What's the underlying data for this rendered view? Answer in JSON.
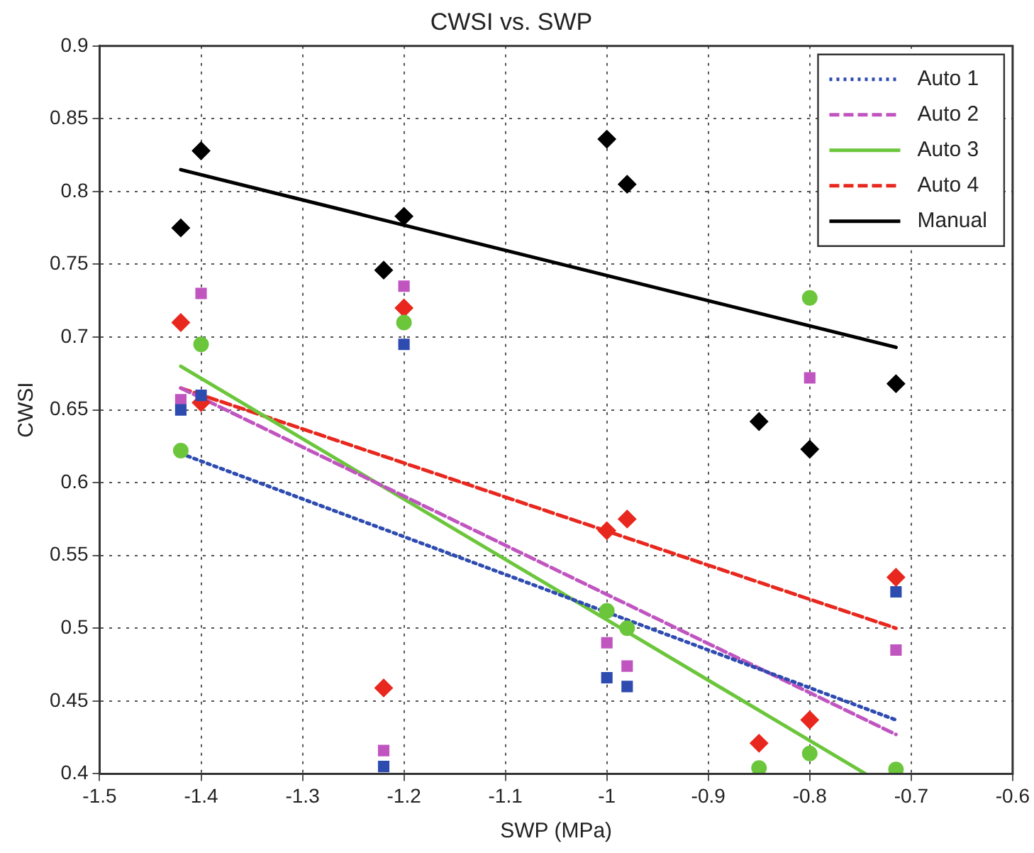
{
  "chart_data": {
    "type": "scatter",
    "title": "CWSI vs. SWP",
    "xlabel": "SWP (MPa)",
    "ylabel": "CWSI",
    "xlim": [
      -1.5,
      -0.6
    ],
    "xticks": [
      -1.5,
      -1.4,
      -1.3,
      -1.2,
      -1.1,
      -1,
      -0.9,
      -0.8,
      -0.7,
      -0.6
    ],
    "ylim": [
      0.4,
      0.9
    ],
    "yticks": [
      0.4,
      0.45,
      0.5,
      0.55,
      0.6,
      0.65,
      0.7,
      0.75,
      0.8,
      0.85,
      0.9
    ],
    "grid": true,
    "legend": "top right",
    "series": [
      {
        "type": "scatter",
        "marker": "square",
        "color": "#2e4bb0",
        "x": [
          -1.42,
          -1.4,
          -1.22,
          -1.2,
          -1,
          -0.98,
          -0.8,
          -0.715
        ],
        "values": [
          0.65,
          0.66,
          0.405,
          0.695,
          0.466,
          0.46,
          null,
          0.525
        ]
      },
      {
        "type": "scatter",
        "marker": "square",
        "color": "#c055c0",
        "x": [
          -1.42,
          -1.4,
          -1.22,
          -1.2,
          -1,
          -0.98,
          -0.8,
          -0.715
        ],
        "values": [
          0.657,
          0.73,
          0.416,
          0.735,
          0.49,
          0.474,
          0.672,
          0.485
        ]
      },
      {
        "type": "scatter",
        "marker": "circle",
        "color": "#6cc63c",
        "x": [
          -1.42,
          -1.4,
          -1.2,
          -1,
          -0.98,
          -0.85,
          -0.8,
          -0.8,
          -0.715
        ],
        "values": [
          0.622,
          0.695,
          0.71,
          0.512,
          0.5,
          0.404,
          0.414,
          0.727,
          0.403
        ]
      },
      {
        "type": "scatter",
        "marker": "diamond",
        "color": "#e8281e",
        "x": [
          -1.42,
          -1.4,
          -1.22,
          -1.2,
          -1,
          -0.98,
          -0.85,
          -0.8,
          -0.715
        ],
        "values": [
          0.71,
          0.655,
          0.459,
          0.72,
          0.567,
          0.575,
          0.421,
          0.437,
          0.535
        ]
      },
      {
        "type": "scatter",
        "marker": "diamond",
        "color": "#000000",
        "x": [
          -1.42,
          -1.4,
          -1.22,
          -1.2,
          -1,
          -0.98,
          -0.85,
          -0.8,
          -0.715
        ],
        "values": [
          0.775,
          0.828,
          0.746,
          0.783,
          0.836,
          0.805,
          0.642,
          0.623,
          0.668
        ]
      },
      {
        "type": "line",
        "name": "Auto 1",
        "marker": "none",
        "line_style": "dotted",
        "color": "#2e4bb0",
        "x": [
          -1.42,
          -0.715
        ],
        "values": [
          0.62,
          0.437
        ]
      },
      {
        "type": "line",
        "name": "Auto 2",
        "marker": "none",
        "line_style": "dashed",
        "color": "#c055c0",
        "x": [
          -1.42,
          -0.715
        ],
        "values": [
          0.665,
          0.427
        ]
      },
      {
        "type": "line",
        "name": "Auto 3",
        "marker": "none",
        "line_style": "solid",
        "color": "#6cc63c",
        "x": [
          -1.42,
          -0.745
        ],
        "values": [
          0.68,
          0.4
        ]
      },
      {
        "type": "line",
        "name": "Auto 4",
        "marker": "none",
        "line_style": "dashed",
        "color": "#e8281e",
        "x": [
          -1.42,
          -0.715
        ],
        "values": [
          0.665,
          0.5
        ]
      },
      {
        "type": "line",
        "name": "Manual",
        "marker": "none",
        "line_style": "solid",
        "color": "#000000",
        "x": [
          -1.42,
          -0.715
        ],
        "values": [
          0.815,
          0.693
        ]
      }
    ]
  }
}
